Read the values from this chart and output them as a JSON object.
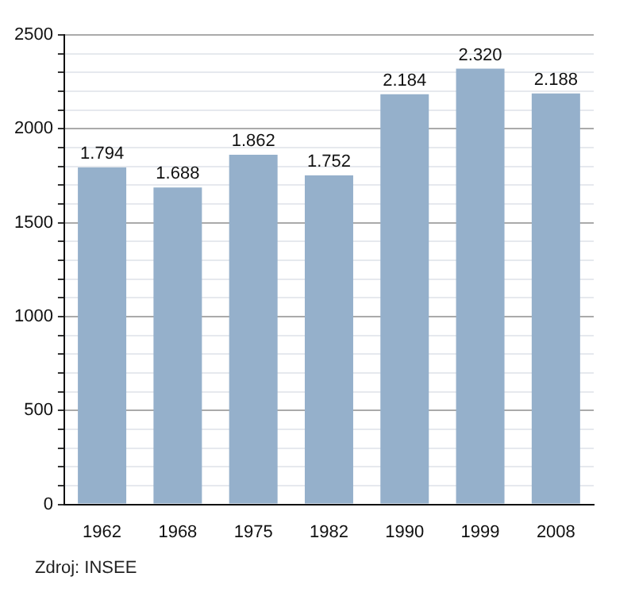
{
  "chart_data": {
    "type": "bar",
    "categories": [
      "1962",
      "1968",
      "1975",
      "1982",
      "1990",
      "1999",
      "2008"
    ],
    "values": [
      1794,
      1688,
      1862,
      1752,
      2184,
      2320,
      2188
    ],
    "value_labels": [
      "1.794",
      "1.688",
      "1.862",
      "1.752",
      "2.184",
      "2.320",
      "2.188"
    ],
    "color": "#95b0cb",
    "ylim": [
      0,
      2500
    ],
    "yticks": [
      0,
      {
        "value": 100,
        "label": null
      },
      {
        "value": 200,
        "label": null
      },
      {
        "value": 300,
        "label": null
      },
      {
        "value": 400,
        "label": null
      },
      500,
      {
        "value": 600,
        "label": null
      },
      {
        "value": 700,
        "label": null
      },
      {
        "value": 800,
        "label": null
      },
      {
        "value": 900,
        "label": null
      },
      1000,
      {
        "value": 1100,
        "label": null
      },
      {
        "value": 1200,
        "label": null
      },
      {
        "value": 1300,
        "label": null
      },
      {
        "value": 1400,
        "label": null
      },
      1500,
      {
        "value": 1600,
        "label": null
      },
      {
        "value": 1700,
        "label": null
      },
      {
        "value": 1800,
        "label": null
      },
      {
        "value": 1900,
        "label": null
      },
      2000,
      {
        "value": 2100,
        "label": null
      },
      {
        "value": 2200,
        "label": null
      },
      {
        "value": 2300,
        "label": null
      },
      {
        "value": 2400,
        "label": null
      },
      2500
    ],
    "grid": "y",
    "annotations": [
      "Zdroj: INSEE"
    ]
  }
}
